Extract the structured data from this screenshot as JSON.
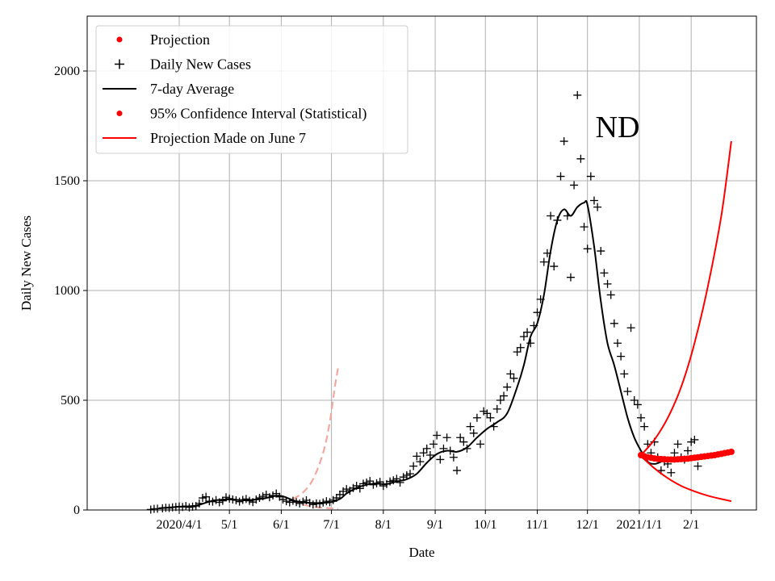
{
  "chart_data": {
    "type": "scatter",
    "title": "",
    "region_label": "ND",
    "xlabel": "Date",
    "ylabel": "Daily New Cases",
    "x_unit": "days since 2020-04-01",
    "xlim": [
      -55,
      345
    ],
    "ylim": [
      0,
      2250
    ],
    "grid": true,
    "legend_position": "top-left",
    "x_ticks": [
      {
        "day": 0,
        "label": "2020/4/1"
      },
      {
        "day": 30,
        "label": "5/1"
      },
      {
        "day": 61,
        "label": "6/1"
      },
      {
        "day": 91,
        "label": "7/1"
      },
      {
        "day": 122,
        "label": "8/1"
      },
      {
        "day": 153,
        "label": "9/1"
      },
      {
        "day": 183,
        "label": "10/1"
      },
      {
        "day": 214,
        "label": "11/1"
      },
      {
        "day": 244,
        "label": "12/1"
      },
      {
        "day": 275,
        "label": "2021/1/1"
      },
      {
        "day": 306,
        "label": "2/1"
      }
    ],
    "y_ticks": [
      0,
      500,
      1000,
      1500,
      2000
    ],
    "legend": [
      {
        "label": "Projection",
        "marker": "dot",
        "color": "#ff0000"
      },
      {
        "label": "Daily New Cases",
        "marker": "plus",
        "color": "#000000"
      },
      {
        "label": "7-day Average",
        "marker": "line",
        "color": "#000000"
      },
      {
        "label": "95% Confidence Interval (Statistical)",
        "marker": "dot",
        "color": "#ff0000"
      },
      {
        "label": "Projection Made on June 7",
        "marker": "line",
        "color": "#ff0000"
      }
    ],
    "series": [
      {
        "name": "Daily New Cases",
        "style": "plus",
        "color": "#000000",
        "points": [
          [
            -17,
            2
          ],
          [
            -15,
            5
          ],
          [
            -13,
            6
          ],
          [
            -10,
            8
          ],
          [
            -8,
            10
          ],
          [
            -6,
            9
          ],
          [
            -4,
            12
          ],
          [
            -2,
            14
          ],
          [
            0,
            16
          ],
          [
            2,
            14
          ],
          [
            4,
            18
          ],
          [
            6,
            12
          ],
          [
            8,
            15
          ],
          [
            10,
            18
          ],
          [
            12,
            30
          ],
          [
            14,
            55
          ],
          [
            16,
            60
          ],
          [
            18,
            40
          ],
          [
            20,
            38
          ],
          [
            22,
            45
          ],
          [
            24,
            35
          ],
          [
            26,
            42
          ],
          [
            28,
            58
          ],
          [
            30,
            52
          ],
          [
            32,
            48
          ],
          [
            34,
            44
          ],
          [
            36,
            38
          ],
          [
            38,
            46
          ],
          [
            40,
            50
          ],
          [
            42,
            42
          ],
          [
            44,
            36
          ],
          [
            46,
            48
          ],
          [
            48,
            55
          ],
          [
            50,
            62
          ],
          [
            52,
            70
          ],
          [
            54,
            58
          ],
          [
            56,
            66
          ],
          [
            58,
            75
          ],
          [
            60,
            60
          ],
          [
            62,
            48
          ],
          [
            64,
            40
          ],
          [
            66,
            35
          ],
          [
            68,
            42
          ],
          [
            70,
            36
          ],
          [
            72,
            30
          ],
          [
            74,
            38
          ],
          [
            76,
            44
          ],
          [
            78,
            32
          ],
          [
            80,
            25
          ],
          [
            82,
            30
          ],
          [
            84,
            28
          ],
          [
            86,
            34
          ],
          [
            88,
            40
          ],
          [
            90,
            36
          ],
          [
            92,
            45
          ],
          [
            94,
            55
          ],
          [
            96,
            70
          ],
          [
            98,
            85
          ],
          [
            100,
            95
          ],
          [
            102,
            88
          ],
          [
            104,
            100
          ],
          [
            106,
            110
          ],
          [
            108,
            98
          ],
          [
            110,
            120
          ],
          [
            112,
            125
          ],
          [
            114,
            132
          ],
          [
            116,
            115
          ],
          [
            118,
            122
          ],
          [
            120,
            128
          ],
          [
            122,
            110
          ],
          [
            124,
            118
          ],
          [
            126,
            130
          ],
          [
            128,
            135
          ],
          [
            130,
            142
          ],
          [
            132,
            125
          ],
          [
            134,
            150
          ],
          [
            136,
            158
          ],
          [
            138,
            165
          ],
          [
            140,
            200
          ],
          [
            142,
            245
          ],
          [
            144,
            220
          ],
          [
            146,
            260
          ],
          [
            148,
            280
          ],
          [
            150,
            250
          ],
          [
            152,
            300
          ],
          [
            154,
            340
          ],
          [
            156,
            230
          ],
          [
            158,
            280
          ],
          [
            160,
            330
          ],
          [
            162,
            270
          ],
          [
            164,
            240
          ],
          [
            166,
            180
          ],
          [
            168,
            330
          ],
          [
            170,
            310
          ],
          [
            172,
            280
          ],
          [
            174,
            380
          ],
          [
            176,
            350
          ],
          [
            178,
            420
          ],
          [
            180,
            300
          ],
          [
            182,
            450
          ],
          [
            184,
            440
          ],
          [
            186,
            420
          ],
          [
            188,
            380
          ],
          [
            190,
            460
          ],
          [
            192,
            500
          ],
          [
            194,
            520
          ],
          [
            196,
            560
          ],
          [
            198,
            620
          ],
          [
            200,
            600
          ],
          [
            202,
            720
          ],
          [
            204,
            740
          ],
          [
            206,
            790
          ],
          [
            208,
            810
          ],
          [
            210,
            760
          ],
          [
            212,
            840
          ],
          [
            214,
            900
          ],
          [
            216,
            960
          ],
          [
            218,
            1130
          ],
          [
            220,
            1170
          ],
          [
            222,
            1340
          ],
          [
            224,
            1110
          ],
          [
            226,
            1320
          ],
          [
            228,
            1520
          ],
          [
            230,
            1680
          ],
          [
            232,
            1340
          ],
          [
            234,
            1060
          ],
          [
            236,
            1480
          ],
          [
            238,
            1890
          ],
          [
            240,
            1600
          ],
          [
            242,
            1290
          ],
          [
            244,
            1190
          ],
          [
            246,
            1520
          ],
          [
            248,
            1410
          ],
          [
            250,
            1380
          ],
          [
            252,
            1180
          ],
          [
            254,
            1080
          ],
          [
            256,
            1030
          ],
          [
            258,
            980
          ],
          [
            260,
            850
          ],
          [
            262,
            760
          ],
          [
            264,
            700
          ],
          [
            266,
            620
          ],
          [
            268,
            540
          ],
          [
            270,
            830
          ],
          [
            272,
            500
          ],
          [
            274,
            480
          ],
          [
            276,
            420
          ],
          [
            278,
            380
          ],
          [
            280,
            300
          ],
          [
            282,
            260
          ],
          [
            284,
            310
          ],
          [
            286,
            240
          ],
          [
            288,
            180
          ],
          [
            290,
            220
          ],
          [
            292,
            210
          ],
          [
            294,
            170
          ],
          [
            296,
            260
          ],
          [
            298,
            300
          ],
          [
            300,
            240
          ],
          [
            302,
            230
          ],
          [
            304,
            270
          ],
          [
            306,
            310
          ],
          [
            308,
            320
          ],
          [
            310,
            200
          ]
        ]
      },
      {
        "name": "7-day Average",
        "style": "line",
        "color": "#000000",
        "points": [
          [
            -12,
            8
          ],
          [
            0,
            15
          ],
          [
            10,
            20
          ],
          [
            20,
            42
          ],
          [
            30,
            48
          ],
          [
            40,
            44
          ],
          [
            50,
            52
          ],
          [
            60,
            65
          ],
          [
            70,
            40
          ],
          [
            80,
            32
          ],
          [
            90,
            35
          ],
          [
            96,
            50
          ],
          [
            100,
            75
          ],
          [
            106,
            100
          ],
          [
            112,
            115
          ],
          [
            118,
            120
          ],
          [
            124,
            118
          ],
          [
            130,
            130
          ],
          [
            136,
            140
          ],
          [
            142,
            165
          ],
          [
            148,
            215
          ],
          [
            154,
            255
          ],
          [
            160,
            270
          ],
          [
            166,
            265
          ],
          [
            172,
            285
          ],
          [
            178,
            330
          ],
          [
            184,
            370
          ],
          [
            190,
            400
          ],
          [
            196,
            440
          ],
          [
            202,
            560
          ],
          [
            206,
            660
          ],
          [
            210,
            790
          ],
          [
            214,
            850
          ],
          [
            218,
            980
          ],
          [
            222,
            1180
          ],
          [
            226,
            1320
          ],
          [
            230,
            1370
          ],
          [
            234,
            1340
          ],
          [
            238,
            1380
          ],
          [
            242,
            1400
          ],
          [
            244,
            1390
          ],
          [
            248,
            1200
          ],
          [
            252,
            950
          ],
          [
            256,
            760
          ],
          [
            260,
            660
          ],
          [
            264,
            540
          ],
          [
            268,
            420
          ],
          [
            272,
            330
          ],
          [
            276,
            270
          ],
          [
            280,
            220
          ],
          [
            284,
            210
          ],
          [
            288,
            220
          ],
          [
            292,
            240
          ]
        ]
      },
      {
        "name": "Projection",
        "style": "dot",
        "color": "#ff0000",
        "points": [
          [
            276,
            250
          ],
          [
            278,
            245
          ],
          [
            280,
            240
          ],
          [
            282,
            238
          ],
          [
            284,
            235
          ],
          [
            286,
            233
          ],
          [
            288,
            232
          ],
          [
            290,
            231
          ],
          [
            292,
            230
          ],
          [
            294,
            230
          ],
          [
            296,
            230
          ],
          [
            298,
            231
          ],
          [
            300,
            232
          ],
          [
            302,
            233
          ],
          [
            304,
            234
          ],
          [
            306,
            236
          ],
          [
            308,
            238
          ],
          [
            310,
            240
          ],
          [
            312,
            242
          ],
          [
            314,
            244
          ],
          [
            316,
            246
          ],
          [
            318,
            248
          ],
          [
            320,
            250
          ],
          [
            322,
            253
          ],
          [
            324,
            256
          ],
          [
            326,
            259
          ],
          [
            328,
            262
          ],
          [
            330,
            265
          ]
        ]
      },
      {
        "name": "95% Confidence Interval (Statistical)",
        "style": "line",
        "color": "#ff0000",
        "points_upper": [
          [
            276,
            250
          ],
          [
            284,
            320
          ],
          [
            292,
            420
          ],
          [
            300,
            560
          ],
          [
            308,
            760
          ],
          [
            316,
            1020
          ],
          [
            324,
            1340
          ],
          [
            330,
            1680
          ]
        ],
        "points_lower": [
          [
            276,
            245
          ],
          [
            284,
            190
          ],
          [
            292,
            145
          ],
          [
            300,
            110
          ],
          [
            308,
            85
          ],
          [
            316,
            65
          ],
          [
            324,
            50
          ],
          [
            330,
            40
          ]
        ]
      },
      {
        "name": "Projection Made on June 7",
        "style": "dashed",
        "color": "#f4a9a0",
        "points_upper": [
          [
            68,
            50
          ],
          [
            74,
            80
          ],
          [
            80,
            140
          ],
          [
            86,
            260
          ],
          [
            90,
            400
          ],
          [
            93,
            560
          ],
          [
            95,
            650
          ]
        ],
        "points_lower": [
          [
            68,
            40
          ],
          [
            74,
            25
          ],
          [
            80,
            15
          ],
          [
            86,
            10
          ],
          [
            90,
            8
          ],
          [
            93,
            6
          ],
          [
            95,
            5
          ]
        ]
      }
    ]
  }
}
